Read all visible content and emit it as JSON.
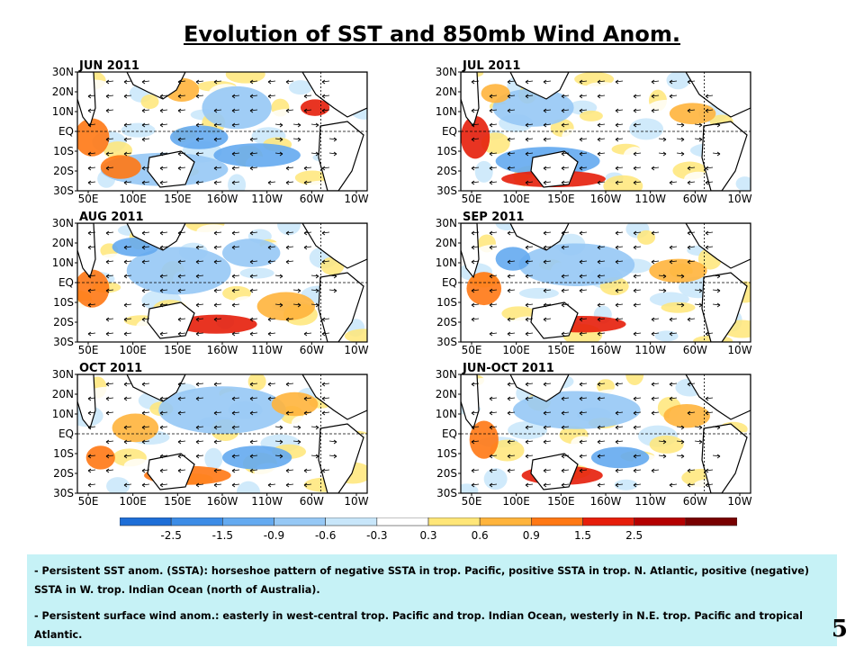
{
  "title": "Evolution of SST and 850mb Wind Anom.",
  "axes": {
    "lat_labels": [
      "30N",
      "20N",
      "10N",
      "EQ",
      "10S",
      "20S",
      "30S"
    ],
    "lon_labels": [
      "50E",
      "100E",
      "150E",
      "160W",
      "110W",
      "60W",
      "10W"
    ]
  },
  "panels": [
    {
      "label": "JUN 2011"
    },
    {
      "label": "JUL 2011"
    },
    {
      "label": "AUG 2011"
    },
    {
      "label": "SEP 2011"
    },
    {
      "label": "OCT 2011"
    },
    {
      "label": "JUN-OCT 2011"
    }
  ],
  "colorbar": {
    "ticks": [
      "-2.5",
      "-1.5",
      "-0.9",
      "-0.6",
      "-0.3",
      "0.3",
      "0.6",
      "0.9",
      "1.5",
      "2.5"
    ],
    "colors": [
      "#1e6ed7",
      "#3c8ce6",
      "#64aaf0",
      "#96c8f5",
      "#c8e6fa",
      "#ffffff",
      "#ffe678",
      "#ffb43c",
      "#ff7814",
      "#e61e0a",
      "#b40000",
      "#780000"
    ]
  },
  "notes": [
    "- Persistent SST anom. (SSTA): horseshoe pattern of negative SSTA in trop. Pacific, positive SSTA in trop. N. Atlantic, positive (negative) SSTA in W. trop. Indian Ocean (north of Australia).",
    "- Persistent surface wind anom.: easterly in west-central trop. Pacific and trop. Indian Ocean, westerly in N.E. trop. Pacific and tropical Atlantic."
  ],
  "page_number": "5"
}
